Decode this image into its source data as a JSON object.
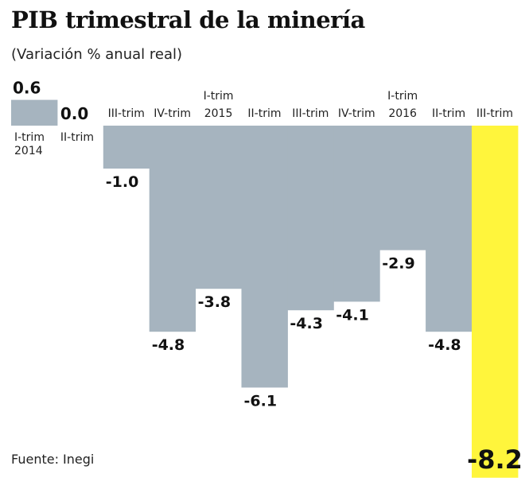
{
  "chart_data": {
    "type": "bar",
    "title": "PIB trimestral de la minería",
    "subtitle": "(Variación % anual real)",
    "source": "Fuente: Inegi",
    "categories": [
      [
        "I-trim",
        "2014"
      ],
      [
        "II-trim"
      ],
      [
        "III-trim"
      ],
      [
        "IV-trim"
      ],
      [
        "I-trim",
        "2015"
      ],
      [
        "II-trim"
      ],
      [
        "III-trim"
      ],
      [
        "IV-trim"
      ],
      [
        "I-trim",
        "2016"
      ],
      [
        "II-trim"
      ],
      [
        "III-trim"
      ]
    ],
    "values": [
      0.6,
      0.0,
      -1.0,
      -4.8,
      -3.8,
      -6.1,
      -4.3,
      -4.1,
      -2.9,
      -4.8,
      -8.2
    ],
    "value_labels": [
      "0.6",
      "0.0",
      "-1.0",
      "-4.8",
      "-3.8",
      "-6.1",
      "-4.3",
      "-4.1",
      "-2.9",
      "-4.8",
      "-8.2"
    ],
    "highlight_index": 10,
    "colors": {
      "bar": "#a6b4bf",
      "highlight": "#fff53c",
      "text": "#111111"
    },
    "grid": false
  }
}
